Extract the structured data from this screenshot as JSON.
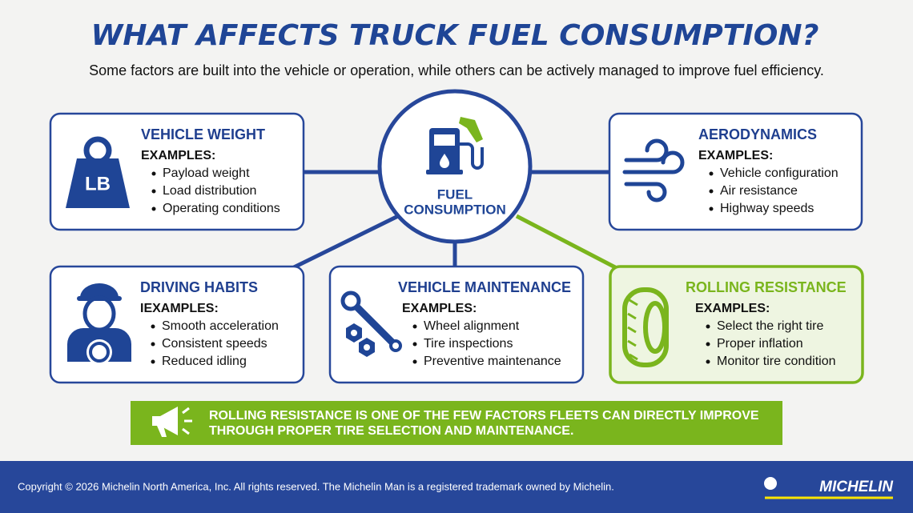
{
  "header": {
    "title": "WHAT AFFECTS TRUCK FUEL CONSUMPTION?",
    "subtitle": "Some factors are built into the vehicle or operation, while others can be actively managed to improve fuel efficiency."
  },
  "center": {
    "label": [
      "FUEL",
      "CONSUMPTION"
    ]
  },
  "cards": [
    {
      "title": "VEHICLE WEIGHT",
      "icon_text": "LB",
      "examples_label": "EXAMPLES:",
      "items": [
        "Payload weight",
        "Load distribution",
        "Operating conditions"
      ]
    },
    {
      "title": "AERODYNAMICS",
      "examples_label": "EXAMPLES:",
      "items": [
        "Vehicle configuration",
        "Air resistance",
        "Highway speeds"
      ]
    },
    {
      "title": "DRIVING HABITS",
      "examples_label": "IEXAMPLES:",
      "items": [
        "Smooth acceleration",
        "Consistent speeds",
        "Reduced idling"
      ]
    },
    {
      "title": "VEHICLE MAINTENANCE",
      "examples_label": "EXAMPLES:",
      "items": [
        "Wheel alignment",
        "Tire inspections",
        "Preventive maintenance"
      ]
    },
    {
      "title": "ROLLING RESISTANCE",
      "examples_label": "EXAMPLES:",
      "items": [
        "Select the right tire",
        "Proper inflation",
        "Monitor tire condition"
      ]
    }
  ],
  "callout": {
    "lines": [
      "ROLLING RESISTANCE IS ONE OF THE FEW FACTORS FLEETS CAN DIRECTLY IMPROVE",
      "THROUGH PROPER TIRE SELECTION AND MAINTENANCE."
    ]
  },
  "footer": {
    "copyright": "Copyright © 2026 Michelin North America, Inc. All rights reserved. The Michelin Man is a registered trademark owned by Michelin.",
    "logo": "MICHELIN"
  }
}
